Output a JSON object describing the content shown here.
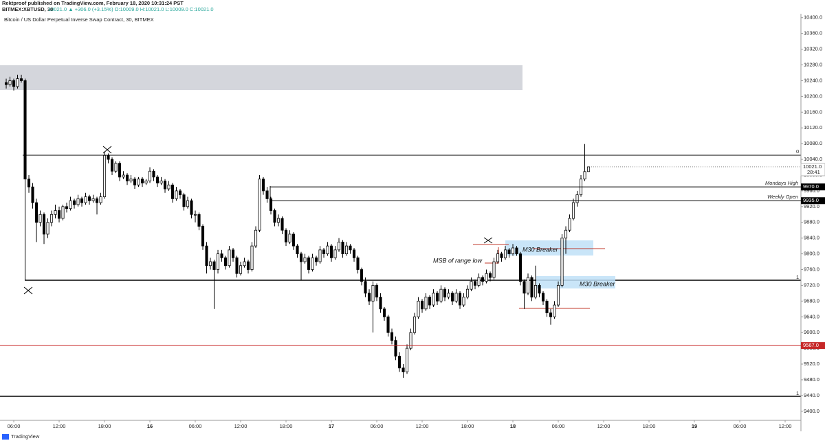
{
  "header": {
    "published": "Rektproof published on TradingView.com, February 18, 2020 10:31:24 PST",
    "symbol": "BITMEX:XBTUSD, 30",
    "quote": "10021.0 ▲ +306.0 (+3.15%) O:10009.0 H:10021.0 L:10009.0 C:10021.0"
  },
  "footer": {
    "brand": "TradingView"
  },
  "annotations": [
    "MSB of range low",
    "M30 Breaker",
    "M30 Breaker",
    "0",
    "1",
    "1"
  ],
  "chart_data": {
    "type": "candlestick",
    "title": "Bitcoin / US Dollar Perpetual Inverse Swap Contract, 30, BITMEX",
    "up_color": "#ffffff",
    "down_color": "#000000",
    "outline_color": "#000000",
    "xlim": [
      -1.64,
      210.36
    ],
    "xticks": [
      {
        "value": 2,
        "label": "06:00"
      },
      {
        "value": 14,
        "label": "12:00"
      },
      {
        "value": 26,
        "label": "18:00"
      },
      {
        "value": 38,
        "label": "16"
      },
      {
        "value": 50,
        "label": "06:00"
      },
      {
        "value": 62,
        "label": "12:00"
      },
      {
        "value": 74,
        "label": "18:00"
      },
      {
        "value": 86,
        "label": "17"
      },
      {
        "value": 98,
        "label": "06:00"
      },
      {
        "value": 110,
        "label": "12:00"
      },
      {
        "value": 122,
        "label": "18:00"
      },
      {
        "value": 134,
        "label": "18"
      },
      {
        "value": 146,
        "label": "06:00"
      },
      {
        "value": 158,
        "label": "12:00"
      },
      {
        "value": 170,
        "label": "18:00"
      },
      {
        "value": 182,
        "label": "19"
      },
      {
        "value": 194,
        "label": "06:00"
      },
      {
        "value": 206,
        "label": "12:00"
      }
    ],
    "ylim": [
      9377,
      10410
    ],
    "yticks": [
      {
        "value": 9400,
        "label": "9400.0"
      },
      {
        "value": 9440,
        "label": "9440.0"
      },
      {
        "value": 9480,
        "label": "9480.0"
      },
      {
        "value": 9520,
        "label": "9520.0"
      },
      {
        "value": 9560,
        "label": "9560.0"
      },
      {
        "value": 9600,
        "label": "9600.0"
      },
      {
        "value": 9640,
        "label": "9640.0"
      },
      {
        "value": 9680,
        "label": "9680.0"
      },
      {
        "value": 9720,
        "label": "9720.0"
      },
      {
        "value": 9760,
        "label": "9760.0"
      },
      {
        "value": 9800,
        "label": "9800.0"
      },
      {
        "value": 9840,
        "label": "9840.0"
      },
      {
        "value": 9880,
        "label": "9880.0"
      },
      {
        "value": 9920,
        "label": "9920.0"
      },
      {
        "value": 9960,
        "label": "9960.0"
      },
      {
        "value": 10000,
        "label": "10000.0"
      },
      {
        "value": 10040,
        "label": "10040.0"
      },
      {
        "value": 10080,
        "label": "10080.0"
      },
      {
        "value": 10120,
        "label": "10120.0"
      },
      {
        "value": 10160,
        "label": "10160.0"
      },
      {
        "value": 10200,
        "label": "10200.0"
      },
      {
        "value": 10240,
        "label": "10240.0"
      },
      {
        "value": 10280,
        "label": "10280.0"
      },
      {
        "value": 10320,
        "label": "10320.0"
      },
      {
        "value": 10360,
        "label": "10360.0"
      },
      {
        "value": 10400,
        "label": "10400.0"
      }
    ],
    "levels": [
      {
        "value": 9970,
        "label": "9970.0",
        "name": "Mondays High",
        "color": "#000000"
      },
      {
        "value": 9935,
        "label": "9935.0",
        "name": "Weekly Open",
        "color": "#000000"
      },
      {
        "value": 9567,
        "label": "9567.0",
        "color": "#c62828"
      }
    ],
    "last_price": {
      "value": 10021,
      "label": "10021.0",
      "countdown": "28:41"
    },
    "ohlc": [
      [
        10235,
        10245,
        10220,
        10230
      ],
      [
        10230,
        10250,
        10225,
        10240
      ],
      [
        10240,
        10245,
        10215,
        10225
      ],
      [
        10225,
        10255,
        10220,
        10245
      ],
      [
        10245,
        10255,
        10235,
        10240
      ],
      [
        10240,
        10245,
        9733,
        9990
      ],
      [
        9990,
        10000,
        9955,
        9970
      ],
      [
        9970,
        9980,
        9915,
        9930
      ],
      [
        9930,
        9940,
        9830,
        9880
      ],
      [
        9880,
        9910,
        9870,
        9900
      ],
      [
        9900,
        9905,
        9825,
        9850
      ],
      [
        9850,
        9890,
        9840,
        9880
      ],
      [
        9880,
        9910,
        9870,
        9900
      ],
      [
        9900,
        9925,
        9890,
        9910
      ],
      [
        9910,
        9920,
        9880,
        9890
      ],
      [
        9890,
        9925,
        9885,
        9920
      ],
      [
        9920,
        9930,
        9905,
        9915
      ],
      [
        9915,
        9945,
        9910,
        9935
      ],
      [
        9935,
        9940,
        9915,
        9925
      ],
      [
        9925,
        9950,
        9920,
        9940
      ],
      [
        9940,
        9945,
        9920,
        9930
      ],
      [
        9930,
        9955,
        9925,
        9945
      ],
      [
        9945,
        9950,
        9925,
        9935
      ],
      [
        9935,
        9950,
        9930,
        9940
      ],
      [
        9940,
        9945,
        9900,
        9930
      ],
      [
        9930,
        9955,
        9925,
        9945
      ],
      [
        9945,
        10060,
        9940,
        10050
      ],
      [
        10050,
        10055,
        10030,
        10040
      ],
      [
        10040,
        10045,
        10000,
        10010
      ],
      [
        10010,
        10035,
        10005,
        10030
      ],
      [
        10030,
        10035,
        9985,
        9995
      ],
      [
        9995,
        10010,
        9990,
        10000
      ],
      [
        10000,
        10005,
        9975,
        9985
      ],
      [
        9985,
        10000,
        9980,
        9990
      ],
      [
        9990,
        9995,
        9965,
        9975
      ],
      [
        9975,
        9995,
        9970,
        9990
      ],
      [
        9990,
        9995,
        9970,
        9980
      ],
      [
        9980,
        9990,
        9975,
        9985
      ],
      [
        9985,
        10020,
        9980,
        10010
      ],
      [
        10010,
        10015,
        9985,
        9995
      ],
      [
        9995,
        10000,
        9970,
        9980
      ],
      [
        9980,
        9995,
        9975,
        9985
      ],
      [
        9985,
        9990,
        9955,
        9965
      ],
      [
        9965,
        9985,
        9960,
        9975
      ],
      [
        9975,
        9980,
        9930,
        9940
      ],
      [
        9940,
        9970,
        9935,
        9960
      ],
      [
        9960,
        9965,
        9940,
        9950
      ],
      [
        9950,
        9955,
        9910,
        9920
      ],
      [
        9920,
        9945,
        9915,
        9935
      ],
      [
        9935,
        9940,
        9890,
        9900
      ],
      [
        9900,
        9910,
        9880,
        9900
      ],
      [
        9900,
        9905,
        9860,
        9870
      ],
      [
        9870,
        9875,
        9810,
        9820
      ],
      [
        9820,
        9830,
        9750,
        9770
      ],
      [
        9770,
        9790,
        9760,
        9780
      ],
      [
        9780,
        9785,
        9660,
        9760
      ],
      [
        9760,
        9810,
        9750,
        9800
      ],
      [
        9800,
        9810,
        9780,
        9790
      ],
      [
        9790,
        9795,
        9760,
        9770
      ],
      [
        9770,
        9820,
        9765,
        9810
      ],
      [
        9810,
        9815,
        9780,
        9790
      ],
      [
        9790,
        9795,
        9740,
        9750
      ],
      [
        9750,
        9780,
        9745,
        9770
      ],
      [
        9770,
        9790,
        9765,
        9780
      ],
      [
        9780,
        9785,
        9750,
        9760
      ],
      [
        9760,
        9830,
        9755,
        9820
      ],
      [
        9820,
        9870,
        9815,
        9860
      ],
      [
        9860,
        10000,
        9855,
        9990
      ],
      [
        9990,
        9995,
        9950,
        9960
      ],
      [
        9960,
        9970,
        9930,
        9940
      ],
      [
        9940,
        9945,
        9900,
        9910
      ],
      [
        9910,
        9915,
        9870,
        9880
      ],
      [
        9880,
        9900,
        9870,
        9890
      ],
      [
        9890,
        9895,
        9850,
        9860
      ],
      [
        9860,
        9865,
        9820,
        9830
      ],
      [
        9830,
        9860,
        9825,
        9850
      ],
      [
        9850,
        9855,
        9810,
        9820
      ],
      [
        9820,
        9825,
        9790,
        9800
      ],
      [
        9800,
        9805,
        9733,
        9780
      ],
      [
        9780,
        9800,
        9775,
        9790
      ],
      [
        9790,
        9795,
        9750,
        9760
      ],
      [
        9760,
        9800,
        9755,
        9790
      ],
      [
        9790,
        9795,
        9770,
        9780
      ],
      [
        9780,
        9820,
        9775,
        9810
      ],
      [
        9810,
        9815,
        9790,
        9800
      ],
      [
        9800,
        9830,
        9795,
        9820
      ],
      [
        9820,
        9825,
        9780,
        9790
      ],
      [
        9790,
        9820,
        9785,
        9810
      ],
      [
        9810,
        9840,
        9805,
        9830
      ],
      [
        9830,
        9835,
        9790,
        9800
      ],
      [
        9800,
        9830,
        9795,
        9820
      ],
      [
        9820,
        9825,
        9800,
        9810
      ],
      [
        9810,
        9815,
        9780,
        9790
      ],
      [
        9790,
        9795,
        9750,
        9760
      ],
      [
        9760,
        9765,
        9720,
        9730
      ],
      [
        9730,
        9740,
        9690,
        9700
      ],
      [
        9700,
        9710,
        9670,
        9680
      ],
      [
        9680,
        9730,
        9600,
        9720
      ],
      [
        9720,
        9725,
        9680,
        9690
      ],
      [
        9690,
        9700,
        9650,
        9660
      ],
      [
        9660,
        9665,
        9630,
        9640
      ],
      [
        9640,
        9645,
        9590,
        9600
      ],
      [
        9600,
        9610,
        9570,
        9580
      ],
      [
        9580,
        9590,
        9530,
        9540
      ],
      [
        9540,
        9550,
        9500,
        9510
      ],
      [
        9510,
        9520,
        9485,
        9500
      ],
      [
        9500,
        9570,
        9495,
        9560
      ],
      [
        9560,
        9610,
        9555,
        9600
      ],
      [
        9600,
        9650,
        9595,
        9640
      ],
      [
        9640,
        9690,
        9635,
        9680
      ],
      [
        9680,
        9685,
        9650,
        9660
      ],
      [
        9660,
        9700,
        9655,
        9690
      ],
      [
        9690,
        9695,
        9660,
        9670
      ],
      [
        9670,
        9710,
        9665,
        9700
      ],
      [
        9700,
        9705,
        9670,
        9680
      ],
      [
        9680,
        9720,
        9675,
        9710
      ],
      [
        9710,
        9715,
        9680,
        9690
      ],
      [
        9690,
        9710,
        9685,
        9700
      ],
      [
        9700,
        9705,
        9670,
        9680
      ],
      [
        9680,
        9710,
        9675,
        9700
      ],
      [
        9700,
        9705,
        9660,
        9670
      ],
      [
        9670,
        9700,
        9665,
        9690
      ],
      [
        9690,
        9720,
        9685,
        9710
      ],
      [
        9710,
        9740,
        9705,
        9730
      ],
      [
        9730,
        9735,
        9710,
        9720
      ],
      [
        9720,
        9750,
        9715,
        9740
      ],
      [
        9740,
        9745,
        9720,
        9730
      ],
      [
        9730,
        9760,
        9725,
        9750
      ],
      [
        9750,
        9755,
        9730,
        9740
      ],
      [
        9740,
        9790,
        9735,
        9780
      ],
      [
        9780,
        9810,
        9775,
        9800
      ],
      [
        9800,
        9805,
        9780,
        9790
      ],
      [
        9790,
        9820,
        9785,
        9810
      ],
      [
        9810,
        9815,
        9790,
        9800
      ],
      [
        9800,
        9825,
        9795,
        9815
      ],
      [
        9815,
        9820,
        9795,
        9800
      ],
      [
        9800,
        9805,
        9720,
        9730
      ],
      [
        9730,
        9735,
        9660,
        9700
      ],
      [
        9700,
        9750,
        9695,
        9740
      ],
      [
        9740,
        9745,
        9680,
        9690
      ],
      [
        9690,
        9770,
        9685,
        9720
      ],
      [
        9720,
        9725,
        9690,
        9700
      ],
      [
        9700,
        9705,
        9670,
        9680
      ],
      [
        9680,
        9685,
        9640,
        9650
      ],
      [
        9650,
        9660,
        9620,
        9640
      ],
      [
        9640,
        9680,
        9635,
        9670
      ],
      [
        9670,
        9730,
        9665,
        9720
      ],
      [
        9720,
        9850,
        9715,
        9840
      ],
      [
        9840,
        9870,
        9800,
        9860
      ],
      [
        9860,
        9900,
        9855,
        9890
      ],
      [
        9890,
        9940,
        9885,
        9930
      ],
      [
        9930,
        9960,
        9920,
        9950
      ],
      [
        9950,
        10000,
        9945,
        9990
      ],
      [
        9990,
        10079,
        9985,
        10009
      ],
      [
        10009,
        10021,
        10009,
        10021
      ]
    ]
  }
}
